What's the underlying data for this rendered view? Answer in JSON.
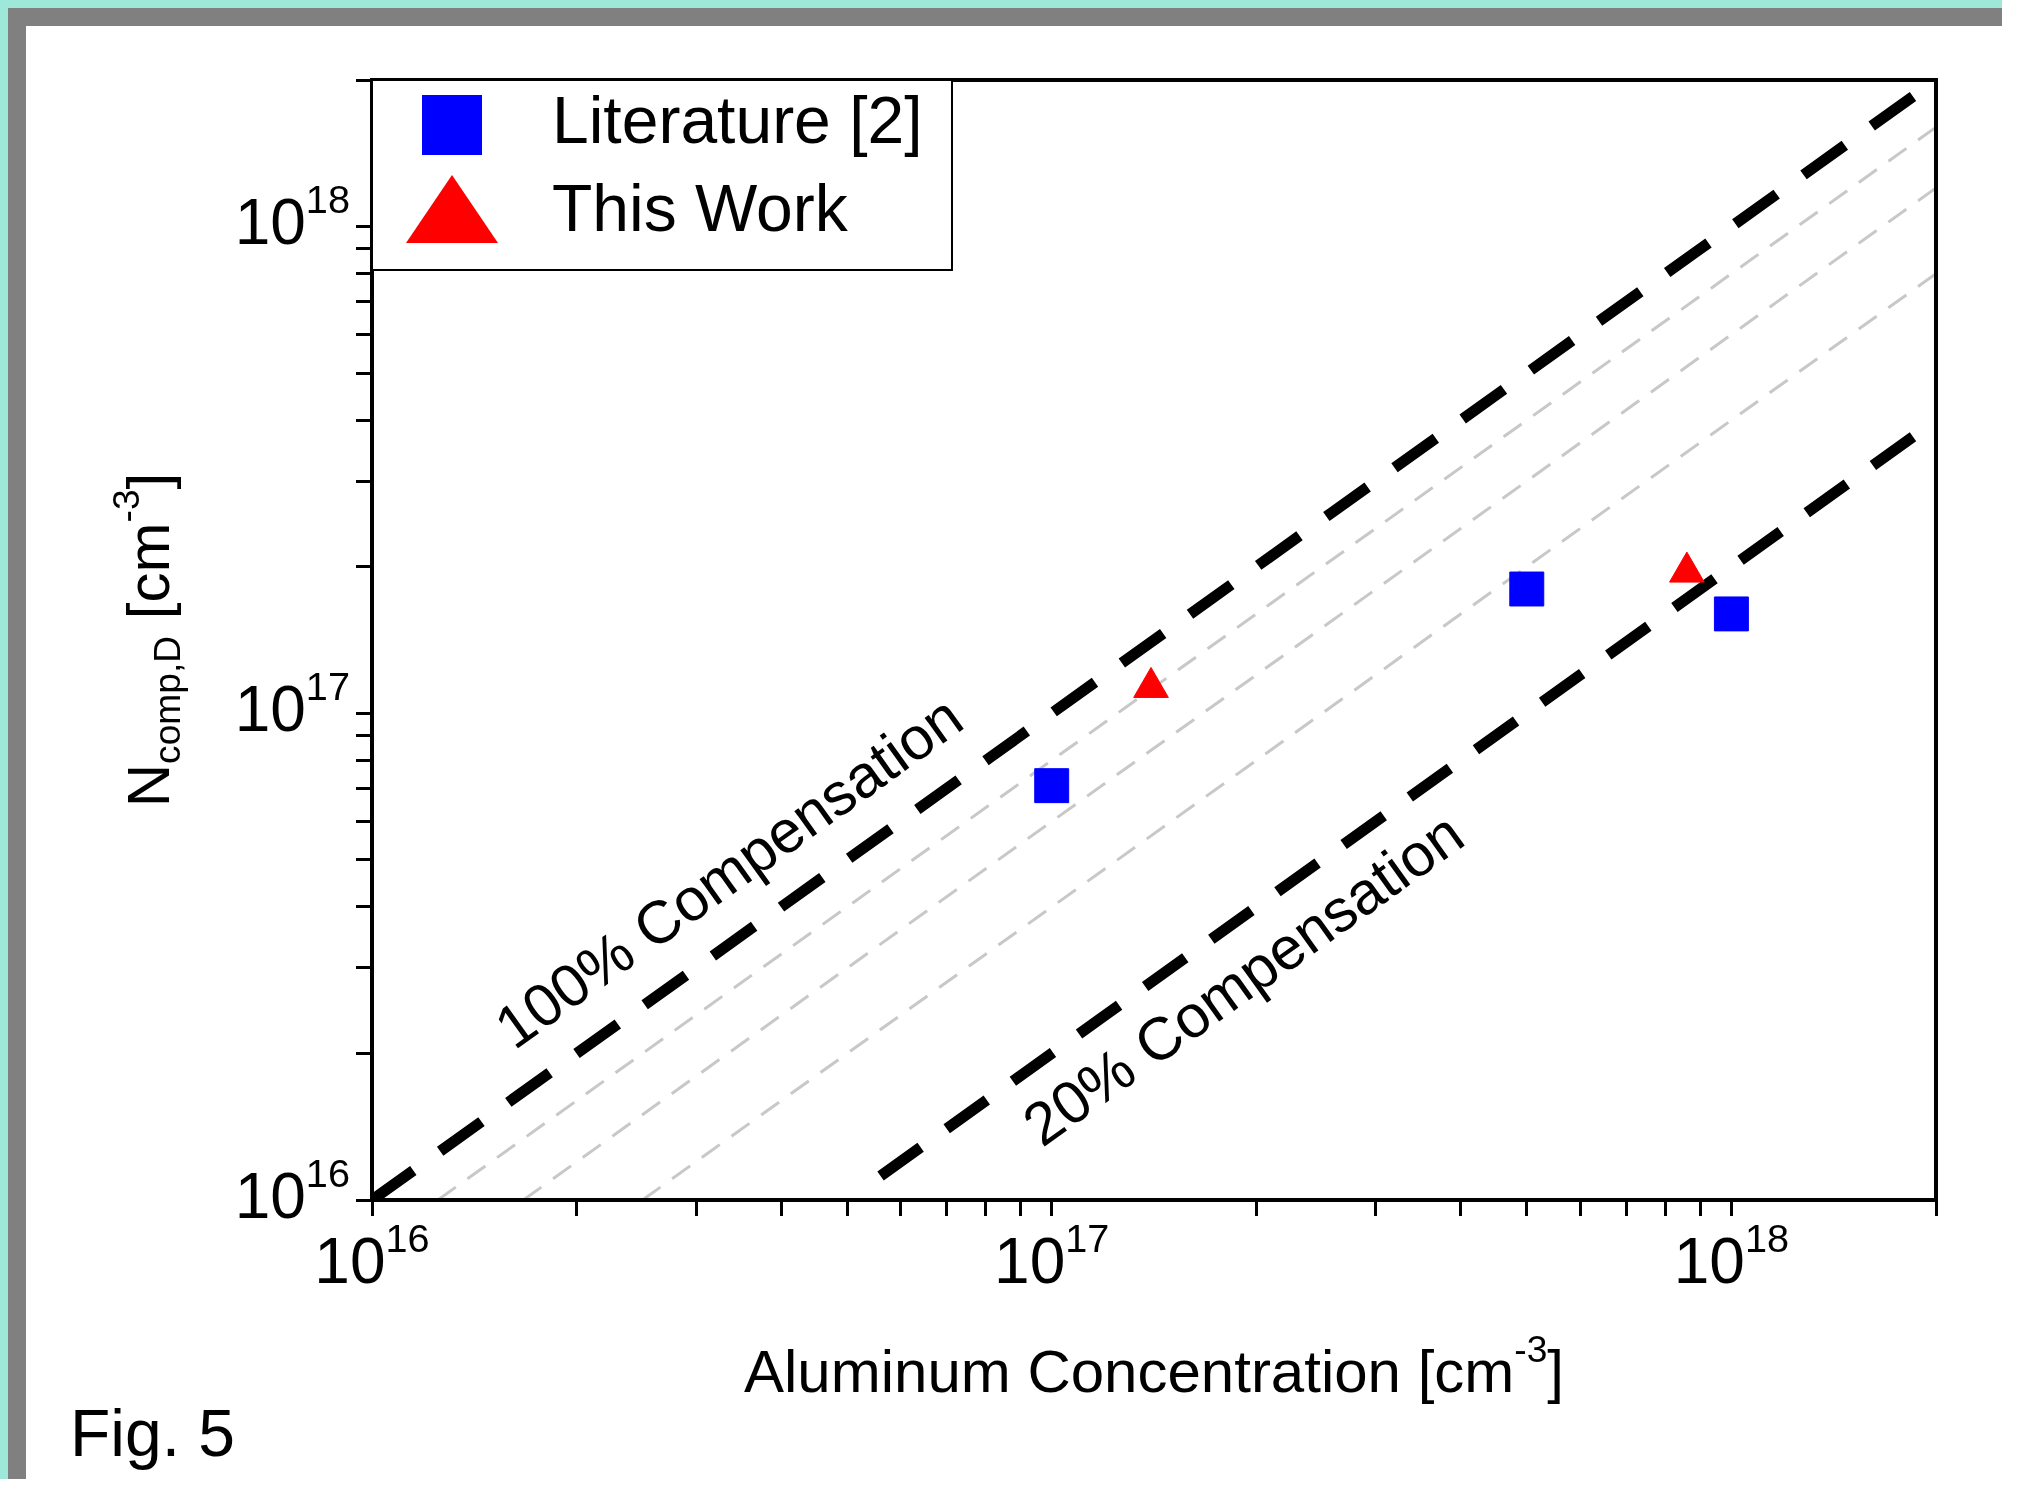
{
  "chart_data": {
    "type": "scatter",
    "xlabel": "Aluminum Concentration [cm$^{-3}$]",
    "ylabel": "N$_{comp,D}$ [cm$^{-3}$]",
    "log": "xy",
    "grid": false,
    "legend": "top left",
    "xlim": [
      1e+16,
      2e+18
    ],
    "ylim": [
      1e+16,
      2e+18
    ],
    "xticks": [
      {
        "value": 1e+16,
        "label": "10$^{16}$"
      },
      {
        "value": 2e+16,
        "label": null
      },
      {
        "value": 3e+16,
        "label": null
      },
      {
        "value": 4e+16,
        "label": null
      },
      {
        "value": 5e+16,
        "label": null
      },
      {
        "value": 6e+16,
        "label": null
      },
      {
        "value": 7e+16,
        "label": null
      },
      {
        "value": 8e+16,
        "label": null
      },
      {
        "value": 9e+16,
        "label": null
      },
      {
        "value": 1e+17,
        "label": "10$^{17}$"
      },
      {
        "value": 2e+17,
        "label": null
      },
      {
        "value": 3e+17,
        "label": null
      },
      {
        "value": 4e+17,
        "label": null
      },
      {
        "value": 5e+17,
        "label": null
      },
      {
        "value": 6e+17,
        "label": null
      },
      {
        "value": 7e+17,
        "label": null
      },
      {
        "value": 8e+17,
        "label": null
      },
      {
        "value": 9e+17,
        "label": null
      },
      {
        "value": 1e+18,
        "label": "10$^{18}$"
      },
      {
        "value": 2e+18,
        "label": null
      }
    ],
    "yticks": [
      {
        "value": 1e+16,
        "label": "10$^{16}$"
      },
      {
        "value": 2e+16,
        "label": null
      },
      {
        "value": 3e+16,
        "label": null
      },
      {
        "value": 4e+16,
        "label": null
      },
      {
        "value": 5e+16,
        "label": null
      },
      {
        "value": 6e+16,
        "label": null
      },
      {
        "value": 7e+16,
        "label": null
      },
      {
        "value": 8e+16,
        "label": null
      },
      {
        "value": 9e+16,
        "label": null
      },
      {
        "value": 1e+17,
        "label": "10$^{17}$"
      },
      {
        "value": 2e+17,
        "label": null
      },
      {
        "value": 3e+17,
        "label": null
      },
      {
        "value": 4e+17,
        "label": null
      },
      {
        "value": 5e+17,
        "label": null
      },
      {
        "value": 6e+17,
        "label": null
      },
      {
        "value": 7e+17,
        "label": null
      },
      {
        "value": 8e+17,
        "label": null
      },
      {
        "value": 9e+17,
        "label": null
      },
      {
        "value": 1e+18,
        "label": "10$^{18}$"
      },
      {
        "value": 2e+18,
        "label": null
      }
    ],
    "annotations": [
      {
        "text": "100% Compensation",
        "x": 3.76e+16,
        "y": 3.76e+16
      },
      {
        "text": "20% Compensation",
        "x": 1.73e+17,
        "y": 3.46e+16
      },
      "Fig. 5"
    ],
    "series": [
      {
        "type": "line",
        "color": "#c8c8c8",
        "line_style": "dashed",
        "marker": "none",
        "x": [
          1.25e+16,
          2e+18
        ],
        "values": [
          1e+16,
          1.6e+18
        ]
      },
      {
        "type": "line",
        "color": "#c8c8c8",
        "line_style": "dashed",
        "marker": "none",
        "x": [
          1.67e+16,
          2e+18
        ],
        "values": [
          1e+16,
          1.2e+18
        ]
      },
      {
        "type": "line",
        "color": "#c8c8c8",
        "line_style": "dashed",
        "marker": "none",
        "x": [
          2.5e+16,
          2e+18
        ],
        "values": [
          1e+16,
          8e+17
        ]
      },
      {
        "type": "line",
        "color": "#000000",
        "line_style": "dashed",
        "marker": "none",
        "x": [
          1e+16,
          1.85e+18
        ],
        "values": [
          1e+16,
          1.85e+18
        ]
      },
      {
        "type": "line",
        "color": "#000000",
        "line_style": "dashed",
        "marker": "none",
        "x": [
          5.6e+16,
          1.85e+18
        ],
        "values": [
          1.12e+16,
          3.7e+17
        ]
      },
      {
        "name": "Literature [2]",
        "color": "#0000ff",
        "marker": "square",
        "x": [
          1e+17,
          5e+17,
          1e+18
        ],
        "values": [
          7.1e+16,
          1.8e+17,
          1.6e+17
        ]
      },
      {
        "name": "This Work",
        "color": "#ff0000",
        "marker": "triangle",
        "x": [
          1.4e+17,
          8.6e+17
        ],
        "values": [
          1.13e+17,
          1.95e+17
        ]
      }
    ]
  }
}
